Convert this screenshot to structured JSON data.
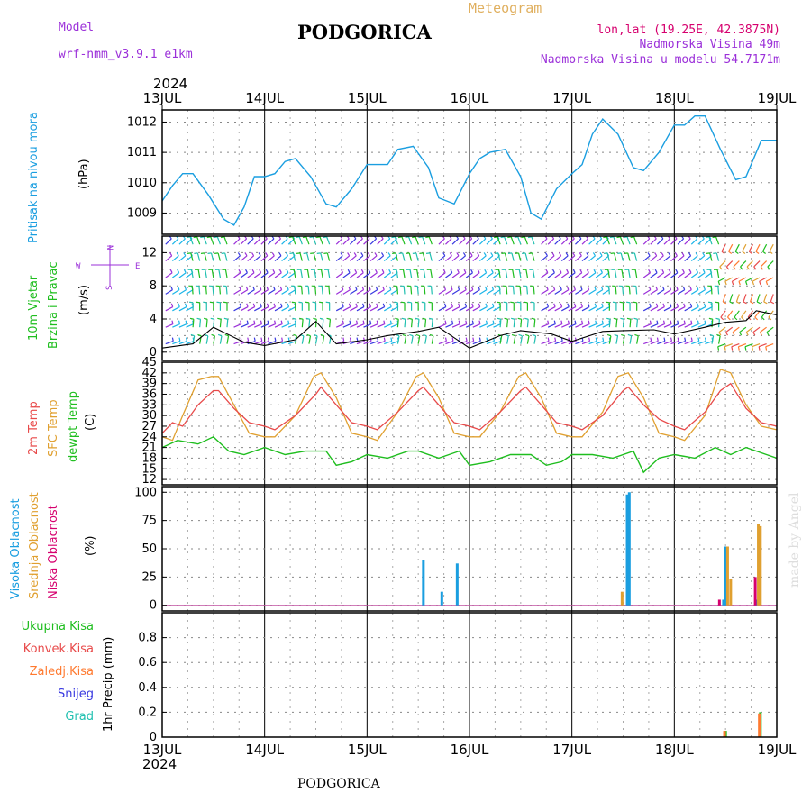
{
  "header": {
    "model_label": "Model",
    "model_name": "wrf-nmm_v3.9.1 e1km",
    "title": "PODGORICA",
    "meteogram": "Meteogram",
    "lonlat": "lon,lat (19.25E, 42.3875N)",
    "elevation": "Nadmorska Visina 49m",
    "model_elevation": "Nadmorska Visina u modelu 54.7171m",
    "footer": "PODGORICA",
    "watermark": "made by Angel",
    "year": "2024",
    "days": [
      "13JUL",
      "14JUL",
      "15JUL",
      "16JUL",
      "17JUL",
      "18JUL",
      "19JUL"
    ]
  },
  "colors": {
    "pressure": "#1a9ee0",
    "temp2m": "#e84a4a",
    "sfc": "#e0a030",
    "dew": "#1fbe1f",
    "purple": "#9b30d9",
    "cyan": "#1ab5e8",
    "magenta": "#d6006e"
  },
  "chart_data": [
    {
      "type": "line",
      "name": "pressure",
      "ylabel_lines": [
        "Pritisak na nivou mora",
        "(hPa)"
      ],
      "ylim": [
        1008.3,
        1012.4
      ],
      "yticks": [
        1009,
        1010,
        1011,
        1012
      ],
      "x_unit": "day",
      "xlim": [
        0,
        6
      ],
      "series": [
        {
          "x": [
            0,
            0.1,
            0.2,
            0.3,
            0.45,
            0.6,
            0.7,
            0.8,
            0.9,
            1.0,
            1.1,
            1.2,
            1.3,
            1.45,
            1.6,
            1.7,
            1.85,
            2.0,
            2.1,
            2.2,
            2.3,
            2.45,
            2.6,
            2.7,
            2.85,
            3.0,
            3.1,
            3.2,
            3.35,
            3.5,
            3.6,
            3.7,
            3.85,
            4.0,
            4.1,
            4.2,
            4.3,
            4.45,
            4.6,
            4.7,
            4.85,
            5.0,
            5.1,
            5.2,
            5.3,
            5.45,
            5.6,
            5.7,
            5.85,
            6.0
          ],
          "y": [
            1009.4,
            1009.9,
            1010.3,
            1010.3,
            1009.6,
            1008.8,
            1008.6,
            1009.2,
            1010.2,
            1010.2,
            1010.3,
            1010.7,
            1010.8,
            1010.2,
            1009.3,
            1009.2,
            1009.8,
            1010.6,
            1010.6,
            1010.6,
            1011.1,
            1011.2,
            1010.5,
            1009.5,
            1009.3,
            1010.3,
            1010.8,
            1011.0,
            1011.1,
            1010.2,
            1009.0,
            1008.8,
            1009.8,
            1010.3,
            1010.6,
            1011.6,
            1012.1,
            1011.6,
            1010.5,
            1010.4,
            1011.0,
            1011.9,
            1011.9,
            1012.2,
            1012.2,
            1011.1,
            1010.1,
            1010.2,
            1011.4,
            1011.4
          ]
        }
      ]
    },
    {
      "type": "barbs",
      "name": "wind",
      "ylabel_lines": [
        "10m Vjetar",
        "Brzina i Pravac",
        "(m/s)"
      ],
      "compass": [
        "W",
        "E",
        "N",
        "S"
      ],
      "ylim": [
        -1,
        14
      ],
      "yticks": [
        0,
        4,
        8,
        12
      ],
      "yticks_all": [
        0,
        2,
        4,
        6,
        8,
        10,
        12
      ],
      "series": [
        {
          "name": "speed",
          "x": [
            0,
            0.3,
            0.5,
            0.8,
            1.0,
            1.3,
            1.5,
            1.7,
            2.0,
            2.2,
            2.5,
            2.7,
            3.0,
            3.3,
            3.5,
            3.8,
            4.0,
            4.3,
            4.5,
            4.8,
            5.0,
            5.3,
            5.5,
            5.7,
            5.8,
            6.0
          ],
          "y": [
            0.5,
            1.0,
            3.0,
            1.2,
            0.8,
            1.5,
            3.7,
            1.0,
            1.5,
            2.0,
            2.5,
            3.0,
            0.5,
            2.0,
            2.6,
            2.2,
            1.3,
            2.5,
            2.6,
            2.7,
            2.2,
            3.0,
            3.6,
            3.8,
            5.0,
            4.5
          ]
        }
      ]
    },
    {
      "type": "line",
      "name": "temperature",
      "ylabel_lines": [
        "2m Temp",
        "SFC Temp",
        "dewpt Temp",
        "(C)"
      ],
      "ylim": [
        10.5,
        45
      ],
      "yticks": [
        12,
        15,
        18,
        21,
        24,
        27,
        30,
        33,
        36,
        39,
        42,
        45
      ],
      "series": [
        {
          "name": "2m Temp",
          "x": [
            0,
            0.1,
            0.2,
            0.35,
            0.5,
            0.55,
            0.7,
            0.85,
            1.0,
            1.1,
            1.3,
            1.5,
            1.55,
            1.7,
            1.85,
            2.0,
            2.1,
            2.3,
            2.5,
            2.55,
            2.7,
            2.85,
            3.0,
            3.1,
            3.3,
            3.5,
            3.55,
            3.7,
            3.85,
            4.0,
            4.1,
            4.3,
            4.5,
            4.55,
            4.7,
            4.85,
            5.0,
            5.1,
            5.3,
            5.45,
            5.55,
            5.7,
            5.85,
            6.0
          ],
          "y": [
            25,
            28,
            27,
            33,
            37,
            37,
            32,
            28,
            27,
            26,
            30,
            36,
            38,
            33,
            28,
            27,
            26,
            31,
            37,
            38,
            33,
            28,
            27,
            26,
            31,
            37,
            38,
            33,
            28,
            27,
            26,
            30,
            37,
            38,
            33,
            29,
            27,
            26,
            31,
            37,
            39,
            32,
            28,
            27
          ]
        },
        {
          "name": "SFC Temp",
          "x": [
            0,
            0.1,
            0.2,
            0.35,
            0.48,
            0.55,
            0.7,
            0.85,
            1.0,
            1.1,
            1.3,
            1.48,
            1.55,
            1.7,
            1.85,
            2.0,
            2.1,
            2.3,
            2.48,
            2.55,
            2.7,
            2.85,
            3.0,
            3.1,
            3.3,
            3.48,
            3.55,
            3.7,
            3.85,
            4.0,
            4.1,
            4.3,
            4.45,
            4.55,
            4.7,
            4.85,
            5.0,
            5.1,
            5.3,
            5.45,
            5.55,
            5.7,
            5.85,
            6.0
          ],
          "y": [
            24,
            23,
            30,
            40,
            41,
            41,
            33,
            25,
            24,
            24,
            30,
            41,
            42,
            35,
            25,
            24,
            23,
            31,
            41,
            42,
            35,
            25,
            24,
            24,
            31,
            41,
            42,
            35,
            25,
            24,
            24,
            31,
            41,
            42,
            35,
            25,
            24,
            23,
            30,
            43,
            42,
            33,
            27,
            26
          ]
        },
        {
          "name": "dewpt Temp",
          "x": [
            0,
            0.15,
            0.35,
            0.5,
            0.65,
            0.8,
            1.0,
            1.2,
            1.4,
            1.6,
            1.7,
            1.85,
            2.0,
            2.2,
            2.4,
            2.5,
            2.7,
            2.9,
            3.0,
            3.2,
            3.4,
            3.6,
            3.75,
            3.9,
            4.0,
            4.2,
            4.4,
            4.6,
            4.7,
            4.85,
            5.0,
            5.2,
            5.4,
            5.55,
            5.7,
            5.9,
            6.0
          ],
          "y": [
            21,
            23,
            22,
            24,
            20,
            19,
            21,
            19,
            20,
            20,
            16,
            17,
            19,
            18,
            20,
            20,
            18,
            20,
            16,
            17,
            19,
            19,
            16,
            17,
            19,
            19,
            18,
            20,
            14,
            18,
            19,
            18,
            21,
            19,
            21,
            19,
            18
          ]
        }
      ]
    },
    {
      "type": "bar",
      "name": "cloudiness",
      "ylabel_lines": [
        "Visoka Oblacnost",
        "Srednja Oblacnost",
        "Niska Oblacnost",
        "(%)"
      ],
      "ylim": [
        -5,
        105
      ],
      "yticks": [
        0,
        25,
        50,
        75,
        100
      ],
      "series": [
        {
          "name": "Visoka Oblacnost",
          "x": [
            2.55,
            2.73,
            2.88,
            4.54,
            4.56,
            5.48,
            5.5,
            5.8
          ],
          "y": [
            40,
            12,
            37,
            98,
            100,
            5,
            52,
            5
          ]
        },
        {
          "name": "Srednja Oblacnost",
          "x": [
            4.49,
            5.52,
            5.55,
            5.82,
            5.84
          ],
          "y": [
            12,
            52,
            23,
            72,
            70
          ]
        },
        {
          "name": "Niska Oblacnost",
          "x": [
            5.44,
            5.79
          ],
          "y": [
            5,
            25
          ]
        }
      ]
    },
    {
      "type": "bar",
      "name": "precipitation",
      "ylabel_lines": [
        "1hr Precip (mm)"
      ],
      "legend": [
        "Ukupna Kisa",
        "Konvek.Kisa",
        "Zaledj.Kisa",
        "Snijeg",
        "Grad"
      ],
      "ylim": [
        0,
        1.0
      ],
      "yticks": [
        0,
        0.2,
        0.4,
        0.6,
        0.8
      ],
      "yticks_text": [
        "0",
        "0.2",
        "0.4",
        "0.6",
        "0.8"
      ],
      "series": [
        {
          "name": "Ukupna Kisa",
          "x": [
            5.5,
            5.84
          ],
          "y": [
            0.05,
            0.2
          ]
        },
        {
          "name": "Zaledj.Kisa",
          "x": [
            5.49,
            5.83
          ],
          "y": [
            0.05,
            0.19
          ]
        }
      ]
    }
  ]
}
